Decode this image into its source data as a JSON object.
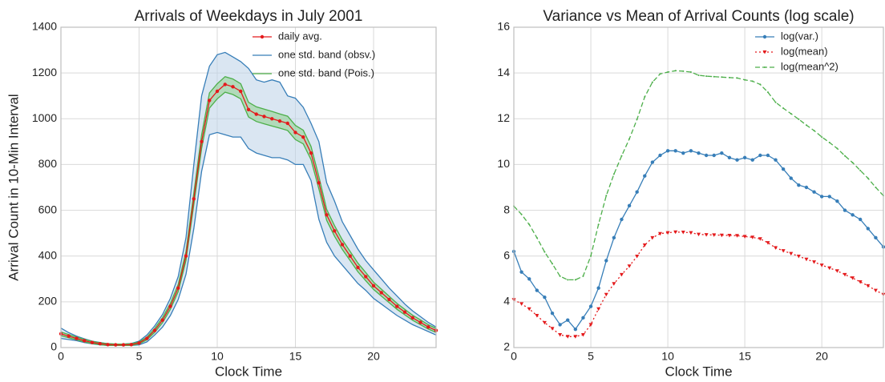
{
  "chart_data": [
    {
      "type": "line",
      "title": "Arrivals of Weekdays in July 2001",
      "x_label": "Clock Time",
      "y_label": "Arrival Count in 10-Min Interval",
      "x": [
        0,
        0.5,
        1,
        1.5,
        2,
        2.5,
        3,
        3.5,
        4,
        4.5,
        5,
        5.5,
        6,
        6.5,
        7,
        7.5,
        8,
        8.5,
        9,
        9.5,
        10,
        10.5,
        11,
        11.5,
        12,
        12.5,
        13,
        13.5,
        14,
        14.5,
        15,
        15.5,
        16,
        16.5,
        17,
        17.5,
        18,
        18.5,
        19,
        19.5,
        20,
        20.5,
        21,
        21.5,
        22,
        22.5,
        23,
        23.5,
        24
      ],
      "xlim": [
        0,
        24
      ],
      "xticks": [
        0,
        5,
        10,
        15,
        20
      ],
      "ylim": [
        0,
        1400
      ],
      "yticks": [
        0,
        200,
        400,
        600,
        800,
        1000,
        1200,
        1400
      ],
      "grid": true,
      "legend": "upper right",
      "series": [
        {
          "name": "daily avg.",
          "color": "#e41a1c",
          "marker": "circle",
          "linestyle": "solid",
          "values": [
            60,
            50,
            40,
            30,
            22,
            17,
            13,
            12,
            12,
            13,
            20,
            40,
            75,
            120,
            180,
            260,
            400,
            650,
            900,
            1080,
            1120,
            1150,
            1140,
            1120,
            1040,
            1020,
            1010,
            1000,
            990,
            980,
            940,
            920,
            850,
            720,
            580,
            510,
            450,
            400,
            350,
            310,
            270,
            240,
            210,
            180,
            155,
            130,
            110,
            90,
            75
          ]
        },
        {
          "name": "one std. band (obsv.)",
          "color": "#377eb8",
          "fill": "#bcd2e8",
          "upper": [
            85,
            65,
            50,
            38,
            28,
            22,
            17,
            15,
            15,
            18,
            28,
            55,
            95,
            145,
            215,
            310,
            480,
            800,
            1100,
            1230,
            1280,
            1290,
            1270,
            1250,
            1220,
            1170,
            1160,
            1170,
            1160,
            1100,
            1090,
            1050,
            980,
            900,
            720,
            640,
            550,
            490,
            430,
            380,
            340,
            300,
            260,
            225,
            190,
            160,
            135,
            110,
            90
          ],
          "lower": [
            40,
            35,
            30,
            22,
            16,
            12,
            9,
            9,
            9,
            9,
            12,
            25,
            55,
            90,
            140,
            210,
            320,
            520,
            770,
            930,
            940,
            930,
            920,
            920,
            870,
            850,
            840,
            830,
            830,
            820,
            800,
            800,
            730,
            560,
            460,
            400,
            360,
            320,
            280,
            250,
            215,
            190,
            165,
            140,
            120,
            100,
            85,
            70,
            55
          ]
        },
        {
          "name": "one std. band (Pois.)",
          "color": "#4daf4a",
          "fill": "#8fcf8c",
          "upper": [
            68,
            57,
            46,
            36,
            27,
            21,
            17,
            15,
            15,
            17,
            24,
            46,
            84,
            131,
            193,
            276,
            420,
            676,
            930,
            1113,
            1153,
            1184,
            1174,
            1153,
            1072,
            1052,
            1042,
            1032,
            1021,
            1011,
            971,
            950,
            879,
            747,
            604,
            533,
            471,
            420,
            369,
            328,
            286,
            255,
            224,
            193,
            167,
            141,
            121,
            100,
            84
          ],
          "lower": [
            52,
            43,
            34,
            25,
            17,
            13,
            9,
            9,
            9,
            9,
            16,
            34,
            66,
            109,
            167,
            244,
            380,
            625,
            870,
            1047,
            1087,
            1116,
            1106,
            1087,
            1008,
            988,
            978,
            968,
            959,
            949,
            909,
            890,
            821,
            693,
            556,
            487,
            429,
            380,
            331,
            292,
            254,
            225,
            196,
            167,
            143,
            119,
            100,
            81,
            66
          ]
        }
      ]
    },
    {
      "type": "line",
      "title": "Variance vs Mean of Arrival Counts (log scale)",
      "x_label": "Clock Time",
      "x": [
        0,
        0.5,
        1,
        1.5,
        2,
        2.5,
        3,
        3.5,
        4,
        4.5,
        5,
        5.5,
        6,
        6.5,
        7,
        7.5,
        8,
        8.5,
        9,
        9.5,
        10,
        10.5,
        11,
        11.5,
        12,
        12.5,
        13,
        13.5,
        14,
        14.5,
        15,
        15.5,
        16,
        16.5,
        17,
        17.5,
        18,
        18.5,
        19,
        19.5,
        20,
        20.5,
        21,
        21.5,
        22,
        22.5,
        23,
        23.5,
        24
      ],
      "xlim": [
        0,
        24
      ],
      "xticks": [
        0,
        5,
        10,
        15,
        20
      ],
      "ylim": [
        2,
        16
      ],
      "yticks": [
        2,
        4,
        6,
        8,
        10,
        12,
        14,
        16
      ],
      "grid": true,
      "legend": "upper right",
      "series": [
        {
          "name": "log(var.)",
          "color": "#377eb8",
          "marker": "circle",
          "linestyle": "solid",
          "values": [
            6.2,
            5.3,
            5.0,
            4.5,
            4.2,
            3.5,
            3.0,
            3.2,
            2.8,
            3.3,
            3.8,
            4.6,
            5.8,
            6.8,
            7.6,
            8.2,
            8.8,
            9.5,
            10.1,
            10.4,
            10.6,
            10.6,
            10.5,
            10.6,
            10.5,
            10.4,
            10.4,
            10.5,
            10.3,
            10.2,
            10.3,
            10.2,
            10.4,
            10.4,
            10.2,
            9.8,
            9.4,
            9.1,
            9.0,
            8.8,
            8.6,
            8.6,
            8.4,
            8.0,
            7.8,
            7.6,
            7.2,
            6.8,
            6.4
          ]
        },
        {
          "name": "log(mean)",
          "color": "#e41a1c",
          "marker": "triangle",
          "linestyle": "dotted",
          "values": [
            4.09,
            3.91,
            3.69,
            3.4,
            3.09,
            2.83,
            2.56,
            2.48,
            2.48,
            2.56,
            3.0,
            3.69,
            4.32,
            4.79,
            5.19,
            5.56,
            5.99,
            6.48,
            6.8,
            6.98,
            7.02,
            7.05,
            7.04,
            7.02,
            6.95,
            6.93,
            6.92,
            6.91,
            6.9,
            6.89,
            6.85,
            6.82,
            6.75,
            6.58,
            6.36,
            6.23,
            6.11,
            5.99,
            5.86,
            5.74,
            5.6,
            5.48,
            5.35,
            5.19,
            5.04,
            4.87,
            4.7,
            4.5,
            4.32
          ]
        },
        {
          "name": "log(mean^2)",
          "color": "#4daf4a",
          "marker": "dot",
          "linestyle": "dashed",
          "values": [
            8.18,
            7.82,
            7.38,
            6.8,
            6.18,
            5.66,
            5.12,
            4.96,
            4.96,
            5.12,
            6.0,
            7.38,
            8.64,
            9.58,
            10.38,
            11.12,
            11.98,
            12.96,
            13.6,
            13.96,
            14.04,
            14.1,
            14.08,
            14.04,
            13.9,
            13.86,
            13.84,
            13.82,
            13.8,
            13.78,
            13.7,
            13.64,
            13.5,
            13.16,
            12.72,
            12.46,
            12.22,
            11.98,
            11.72,
            11.48,
            11.2,
            10.96,
            10.7,
            10.38,
            10.08,
            9.74,
            9.4,
            9.0,
            8.64
          ]
        }
      ]
    }
  ]
}
